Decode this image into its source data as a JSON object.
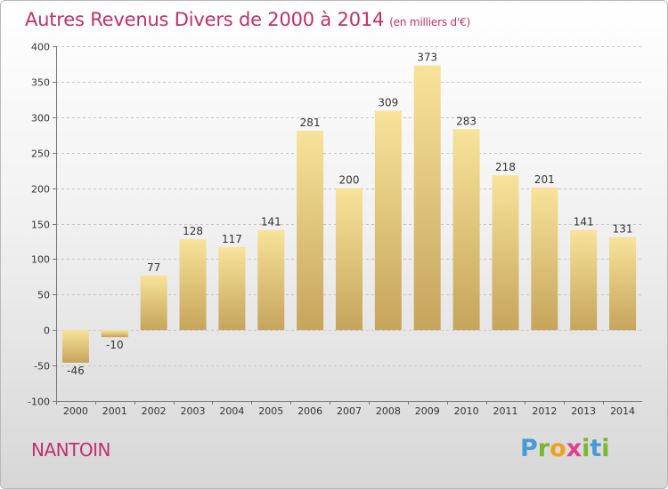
{
  "header": {
    "title": "Autres Revenus Divers de 2000 à 2014",
    "subtitle": "(en milliers d'€)"
  },
  "footer": {
    "location": "NANTOIN",
    "brand": {
      "letters": [
        "P",
        "r",
        "o",
        "x",
        "i",
        "t",
        "i"
      ],
      "colors": [
        "#4a9ad8",
        "#7ab82e",
        "#f0a020",
        "#e04090",
        "#7ab82e",
        "#4a9ad8",
        "#7ab82e"
      ]
    }
  },
  "colors": {
    "title": "#c0306a",
    "bar_light": "#f8e39a",
    "bar_dark": "#c6a45c",
    "grid": "#c8c8c8",
    "axis": "#777777"
  },
  "chart_data": {
    "type": "bar",
    "title": "Autres Revenus Divers de 2000 à 2014",
    "subtitle": "(en milliers d'€)",
    "categories": [
      "2000",
      "2001",
      "2002",
      "2003",
      "2004",
      "2005",
      "2006",
      "2007",
      "2008",
      "2009",
      "2010",
      "2011",
      "2012",
      "2013",
      "2014"
    ],
    "values": [
      -46,
      -10,
      77,
      128,
      117,
      141,
      281,
      200,
      309,
      373,
      283,
      218,
      201,
      141,
      131
    ],
    "value_labels": [
      "-46",
      "-10",
      "77",
      "128",
      "117",
      "141",
      "281",
      "200",
      "309",
      "373",
      "283",
      "218",
      "201",
      "141",
      "131"
    ],
    "ylim": [
      -100,
      400
    ],
    "yticks": [
      -100,
      -50,
      0,
      50,
      100,
      150,
      200,
      250,
      300,
      350,
      400
    ],
    "ytick_labels": [
      "-100",
      "-50",
      "0",
      "50",
      "100",
      "150",
      "200",
      "250",
      "300",
      "350",
      "400"
    ],
    "grid": true
  }
}
